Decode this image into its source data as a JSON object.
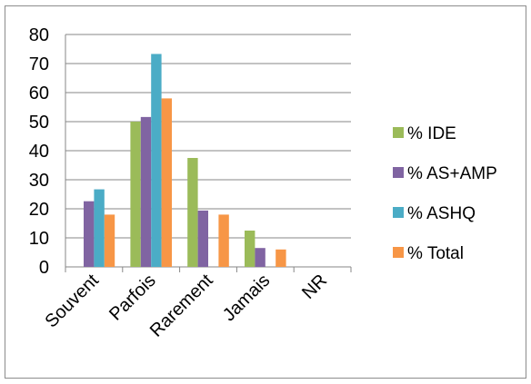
{
  "chart_data": {
    "type": "bar",
    "categories": [
      "Souvent",
      "Parfois",
      "Rarement",
      "Jamais",
      "NR"
    ],
    "series": [
      {
        "name": "% IDE",
        "color": "#9BBB59",
        "values": [
          0,
          50,
          37.5,
          12.5,
          0
        ]
      },
      {
        "name": "% AS+AMP",
        "color": "#8064A2",
        "values": [
          22.6,
          51.6,
          19.4,
          6.5,
          0
        ]
      },
      {
        "name": "% ASHQ",
        "color": "#4BACC6",
        "values": [
          26.7,
          73.3,
          0,
          0,
          0
        ]
      },
      {
        "name": "% Total",
        "color": "#F79646",
        "values": [
          18.0,
          58.0,
          18.0,
          6.0,
          0
        ]
      }
    ],
    "ylim": [
      0,
      80
    ],
    "yticks": [
      0,
      10,
      20,
      30,
      40,
      50,
      60,
      70,
      80
    ],
    "grid": true,
    "legend_position": "right",
    "title": "",
    "xlabel": "",
    "ylabel": ""
  }
}
